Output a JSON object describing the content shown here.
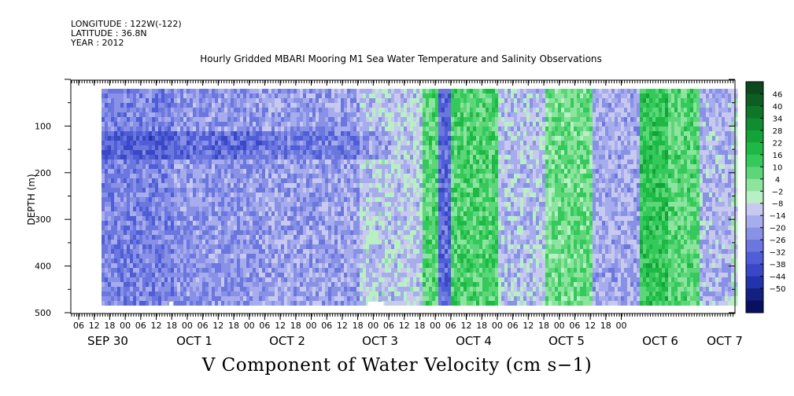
{
  "header": {
    "longitude": "LONGITUDE : 122W(-122)",
    "latitude": "LATITUDE : 36.8N",
    "year": "YEAR : 2012"
  },
  "chart_data": {
    "type": "heatmap",
    "title": "Hourly Gridded MBARI Mooring M1 Sea Water Temperature and Salinity Observations",
    "bottom_title": "V Component of Water Velocity (cm s−1)",
    "ylabel": "DEPTH (m)",
    "ylim": [
      500,
      0
    ],
    "y_ticks": [
      100,
      200,
      300,
      400,
      500
    ],
    "x_hour_ticks": [
      "06",
      "12",
      "18",
      "00",
      "06",
      "12",
      "18",
      "00",
      "06",
      "12",
      "18",
      "00",
      "06",
      "12",
      "18",
      "00",
      "06",
      "12",
      "18",
      "00",
      "06",
      "12",
      "18",
      "00",
      "06",
      "12",
      "18",
      "00",
      "06",
      "12",
      "18",
      "00",
      "06",
      "12",
      "18",
      "00"
    ],
    "x_day_labels": [
      "SEP 30",
      "OCT  1",
      "OCT  2",
      "OCT  3",
      "OCT  4",
      "OCT  5",
      "OCT  6",
      "OCT  7"
    ],
    "colorbar_levels": [
      "46",
      "40",
      "34",
      "28",
      "22",
      "16",
      "10",
      "4",
      "−2",
      "−8",
      "−14",
      "−20",
      "−26",
      "−32",
      "−38",
      "−44",
      "−50"
    ],
    "colorbar_colors": [
      "#0a4a1c",
      "#0c5e22",
      "#0e7529",
      "#118c31",
      "#14a339",
      "#1eb944",
      "#34c95a",
      "#5cd678",
      "#8de49f",
      "#b8efc4",
      "#c7c9ee",
      "#a6acec",
      "#8891e6",
      "#6b76de",
      "#4f5ed6",
      "#3a48c6",
      "#2233ac",
      "#14207f",
      "#0a1060"
    ],
    "v_regions": [
      {
        "t0": 0,
        "t1": 36,
        "value": -22
      },
      {
        "t0": 36,
        "t1": 72,
        "value": -18
      },
      {
        "t0": 72,
        "t1": 108,
        "value": -16
      },
      {
        "t0": 108,
        "t1": 132,
        "value": -8
      },
      {
        "t0": 132,
        "t1": 138,
        "value": 10
      },
      {
        "t0": 138,
        "t1": 144,
        "value": -28
      },
      {
        "t0": 144,
        "t1": 162,
        "value": 12
      },
      {
        "t0": 162,
        "t1": 180,
        "value": -10
      },
      {
        "t0": 180,
        "t1": 198,
        "value": 8
      },
      {
        "t0": 198,
        "t1": 216,
        "value": -14
      },
      {
        "t0": 216,
        "t1": 228,
        "value": 16
      },
      {
        "t0": 228,
        "t1": 240,
        "value": 10
      },
      {
        "t0": 240,
        "t1": 252,
        "value": -12
      },
      {
        "t0": 252,
        "t1": 270,
        "value": -6
      }
    ],
    "gaps": [
      {
        "t": 35,
        "width_h": 1
      },
      {
        "t": 112,
        "width_h": 4
      }
    ]
  }
}
